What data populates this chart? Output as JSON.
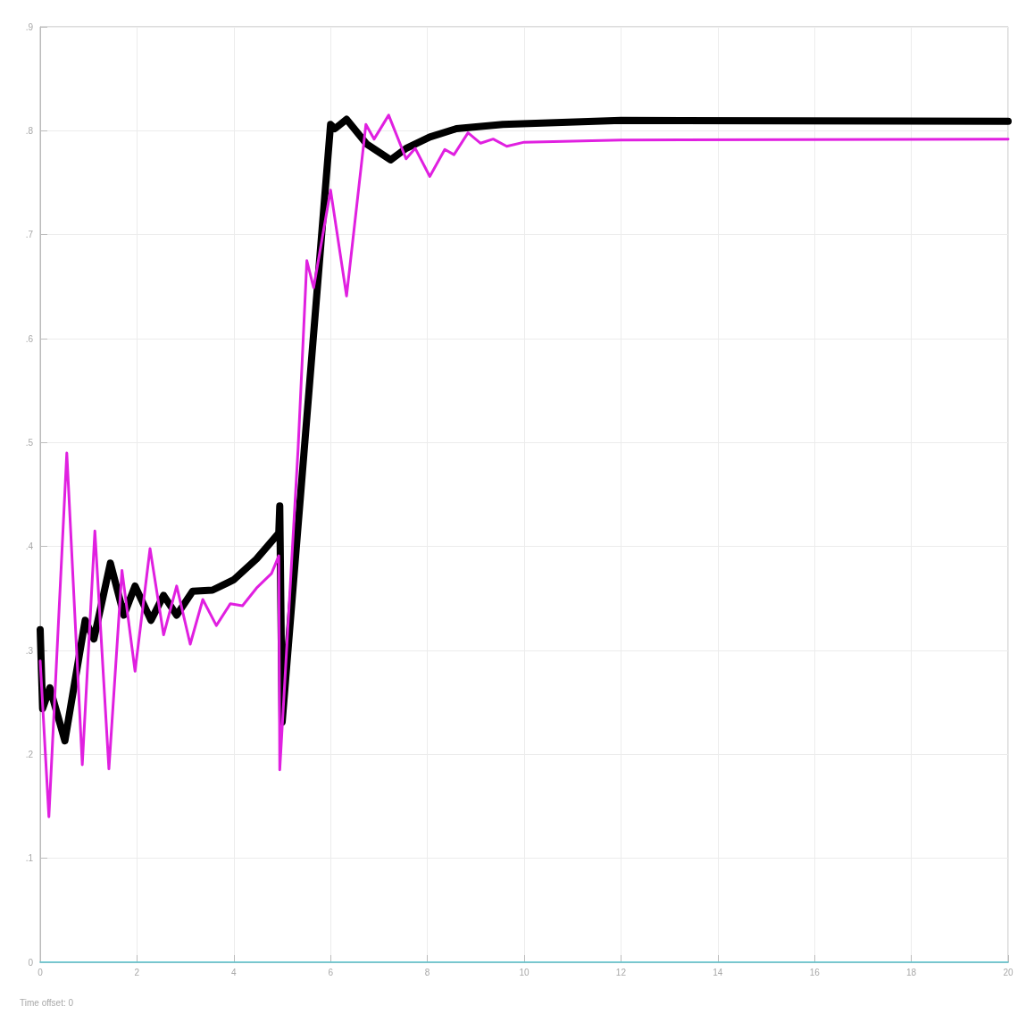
{
  "chart_data": {
    "type": "line",
    "xlim": [
      0,
      20
    ],
    "xticks": [
      0,
      2,
      4,
      6,
      8,
      10,
      12,
      14,
      16,
      18,
      20
    ],
    "ylim": [
      0,
      0.9
    ],
    "yticks": [
      {
        "value": 0,
        "label": "0"
      },
      {
        "value": 0.1,
        "label": ".1"
      },
      {
        "value": 0.2,
        "label": ".2"
      },
      {
        "value": 0.3,
        "label": ".3"
      },
      {
        "value": 0.4,
        "label": ".4"
      },
      {
        "value": 0.5,
        "label": ".5"
      },
      {
        "value": 0.6,
        "label": ".6"
      },
      {
        "value": 0.7,
        "label": ".7"
      },
      {
        "value": 0.8,
        "label": ".8"
      },
      {
        "value": 0.9,
        "label": ".9"
      }
    ],
    "grid": true,
    "marker": "none",
    "line_style": "solid",
    "annotations": [
      "Time offset: 0"
    ],
    "series": [
      {
        "color": "#4fc8d4",
        "x": [
          0,
          20
        ],
        "values": [
          0,
          0
        ]
      },
      {
        "color": "#e020e0",
        "x": [
          0,
          0.18,
          0.55,
          0.87,
          1.13,
          1.42,
          1.69,
          1.96,
          2.27,
          2.55,
          2.82,
          3.1,
          3.36,
          3.64,
          3.93,
          4.18,
          4.47,
          4.78,
          4.93,
          4.95,
          5.33,
          5.51,
          5.65,
          6.0,
          6.33,
          6.73,
          6.9,
          7.2,
          7.56,
          7.75,
          8.05,
          8.36,
          8.55,
          8.84,
          9.1,
          9.36,
          9.64,
          10,
          12,
          20
        ],
        "values": [
          0.29,
          0.14,
          0.49,
          0.19,
          0.415,
          0.186,
          0.377,
          0.28,
          0.398,
          0.315,
          0.362,
          0.306,
          0.349,
          0.324,
          0.345,
          0.343,
          0.36,
          0.374,
          0.391,
          0.185,
          0.495,
          0.675,
          0.649,
          0.743,
          0.641,
          0.806,
          0.792,
          0.815,
          0.773,
          0.783,
          0.756,
          0.782,
          0.777,
          0.798,
          0.788,
          0.792,
          0.785,
          0.789,
          0.791,
          0.792
        ]
      },
      {
        "color": "#000000",
        "x": [
          0,
          0.05,
          0.2,
          0.51,
          0.93,
          1.11,
          1.45,
          1.73,
          1.96,
          2.29,
          2.55,
          2.82,
          3.15,
          3.56,
          4.0,
          4.47,
          4.93,
          4.95,
          5.0,
          6.0,
          6.09,
          6.33,
          6.75,
          7.24,
          7.56,
          8.05,
          8.6,
          9.56,
          12,
          20
        ],
        "values": [
          0.32,
          0.244,
          0.264,
          0.213,
          0.329,
          0.311,
          0.384,
          0.334,
          0.362,
          0.329,
          0.353,
          0.334,
          0.357,
          0.358,
          0.368,
          0.388,
          0.413,
          0.439,
          0.231,
          0.806,
          0.802,
          0.811,
          0.787,
          0.772,
          0.783,
          0.794,
          0.802,
          0.806,
          0.81,
          0.809
        ]
      }
    ]
  }
}
